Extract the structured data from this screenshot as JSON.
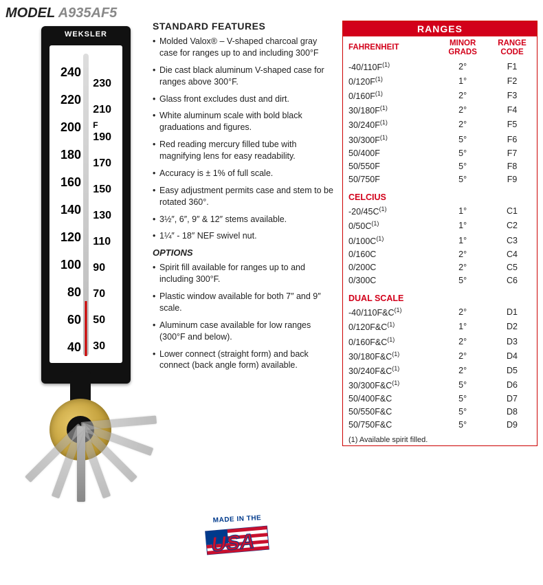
{
  "model_label": "MODEL",
  "model_number": "A935AF5",
  "thermo_brand": "WEKSLER",
  "scale_left": [
    "240",
    "220",
    "200",
    "180",
    "160",
    "140",
    "120",
    "100",
    "80",
    "60",
    "40"
  ],
  "scale_right": [
    "230",
    "210",
    "F",
    "190",
    "170",
    "150",
    "130",
    "110",
    "90",
    "70",
    "50",
    "30"
  ],
  "features_heading": "STANDARD FEATURES",
  "features": [
    "Molded Valox® – V-shaped charcoal gray case for ranges up to and including 300°F",
    "Die cast black aluminum V-shaped case for ranges above 300°F.",
    "Glass front excludes dust and dirt.",
    "White aluminum scale with bold black graduations and figures.",
    "Red reading mercury filled tube with magnifying lens for easy readability.",
    "Accuracy is ± 1% of full scale.",
    "Easy adjustment permits case and stem to be rotated 360°.",
    "3½″, 6″, 9″ & 12″ stems available.",
    "1¼″ - 18″ NEF swivel nut."
  ],
  "options_heading": "OPTIONS",
  "options": [
    "Spirit fill available for ranges up to and including 300°F.",
    "Plastic window available for both 7″ and 9″ scale.",
    "Aluminum case available for low ranges (300°F and below).",
    "Lower connect (straight form) and back connect (back angle form) available."
  ],
  "ranges_title": "RANGES",
  "col_headers": {
    "c1": "FAHRENHEIT",
    "c2": "MINOR\nGRADS",
    "c3": "RANGE\nCODE"
  },
  "sections": [
    {
      "name": "FAHRENHEIT",
      "is_header_row": true,
      "rows": [
        {
          "range": "-40/110F",
          "note": "(1)",
          "grad": "2°",
          "code": "F1"
        },
        {
          "range": "0/120F",
          "note": "(1)",
          "grad": "1°",
          "code": "F2"
        },
        {
          "range": "0/160F",
          "note": "(1)",
          "grad": "2°",
          "code": "F3"
        },
        {
          "range": "30/180F",
          "note": "(1)",
          "grad": "2°",
          "code": "F4"
        },
        {
          "range": "30/240F",
          "note": "(1)",
          "grad": "2°",
          "code": "F5"
        },
        {
          "range": "30/300F",
          "note": "(1)",
          "grad": "5°",
          "code": "F6"
        },
        {
          "range": "50/400F",
          "note": "",
          "grad": "5°",
          "code": "F7"
        },
        {
          "range": "50/550F",
          "note": "",
          "grad": "5°",
          "code": "F8"
        },
        {
          "range": "50/750F",
          "note": "",
          "grad": "5°",
          "code": "F9"
        }
      ]
    },
    {
      "name": "CELCIUS",
      "rows": [
        {
          "range": "-20/45C",
          "note": "(1)",
          "grad": "1°",
          "code": "C1"
        },
        {
          "range": "0/50C",
          "note": "(1)",
          "grad": "1°",
          "code": "C2"
        },
        {
          "range": "0/100C",
          "note": "(1)",
          "grad": "1°",
          "code": "C3"
        },
        {
          "range": "0/160C",
          "note": "",
          "grad": "2°",
          "code": "C4"
        },
        {
          "range": "0/200C",
          "note": "",
          "grad": "2°",
          "code": "C5"
        },
        {
          "range": "0/300C",
          "note": "",
          "grad": "5°",
          "code": "C6"
        }
      ]
    },
    {
      "name": "DUAL SCALE",
      "rows": [
        {
          "range": "-40/110F&C",
          "note": "(1)",
          "grad": "2°",
          "code": "D1"
        },
        {
          "range": "0/120F&C",
          "note": "(1)",
          "grad": "1°",
          "code": "D2"
        },
        {
          "range": "0/160F&C",
          "note": "(1)",
          "grad": "2°",
          "code": "D3"
        },
        {
          "range": "30/180F&C",
          "note": "(1)",
          "grad": "2°",
          "code": "D4"
        },
        {
          "range": "30/240F&C",
          "note": "(1)",
          "grad": "2°",
          "code": "D5"
        },
        {
          "range": "30/300F&C",
          "note": "(1)",
          "grad": "5°",
          "code": "D6"
        },
        {
          "range": "50/400F&C",
          "note": "",
          "grad": "5°",
          "code": "D7"
        },
        {
          "range": "50/550F&C",
          "note": "",
          "grad": "5°",
          "code": "D8"
        },
        {
          "range": "50/750F&C",
          "note": "",
          "grad": "5°",
          "code": "D9"
        }
      ]
    }
  ],
  "footnote": "(1) Available spirit filled.",
  "usa_top": "MADE IN THE",
  "arm_angles": [
    -95,
    -70,
    -45,
    -20,
    0,
    20,
    45
  ]
}
